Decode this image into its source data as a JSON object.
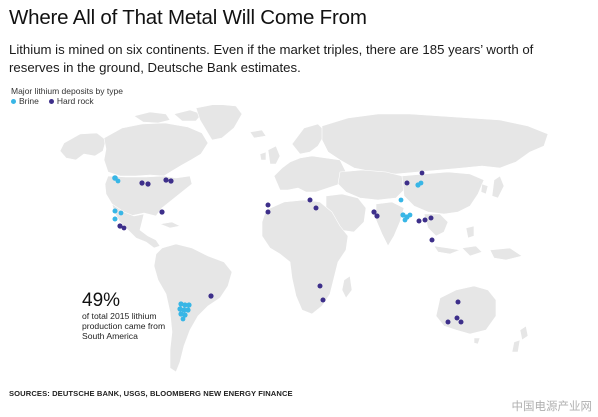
{
  "header": {
    "title": "Where All of That Metal Will Come From",
    "subtitle": "Lithium is mined on six continents. Even if the market triples, there are 185 years’ worth of reserves in the ground, Deutsche Bank estimates."
  },
  "legend": {
    "title": "Major lithium deposits by type",
    "items": [
      {
        "label": "Brine",
        "color": "#38b6e6"
      },
      {
        "label": "Hard rock",
        "color": "#3d2f8a"
      }
    ]
  },
  "map": {
    "land_color": "#e6e6e6",
    "border_color": "#ffffff"
  },
  "callout": {
    "percent": "49%",
    "text": "of total 2015 lithium production came from South America"
  },
  "footer": {
    "sources": "SOURCES: DEUTSCHE BANK, USGS, BLOOMBERG NEW ENERGY FINANCE"
  },
  "watermark": "中国电源产业网"
}
